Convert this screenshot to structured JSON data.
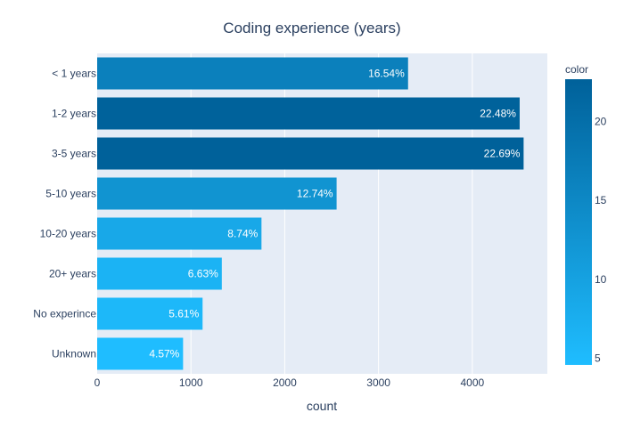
{
  "chart_data": {
    "type": "bar",
    "orientation": "horizontal",
    "title": "Coding experience (years)",
    "xlabel": "count",
    "ylabel": "",
    "xlim": [
      0,
      4800
    ],
    "xticks": [
      0,
      1000,
      2000,
      3000,
      4000
    ],
    "grid": true,
    "categories": [
      "< 1 years",
      "1-2 years",
      "3-5 years",
      "5-10 years",
      "10-20 years",
      "20+ years",
      "No experince",
      "Unknown"
    ],
    "values": [
      3315,
      4505,
      4547,
      2553,
      1752,
      1329,
      1124,
      916
    ],
    "color_values": [
      16.54,
      22.48,
      22.69,
      12.74,
      8.74,
      6.63,
      5.61,
      4.57
    ],
    "labels": [
      "16.54%",
      "22.48%",
      "22.69%",
      "12.74%",
      "8.74%",
      "6.63%",
      "5.61%",
      "4.57%"
    ],
    "colorbar": {
      "title": "color",
      "range": [
        4.57,
        22.69
      ],
      "ticks": [
        5,
        10,
        15,
        20
      ],
      "colors": [
        "#1fbdff",
        "#00619a"
      ]
    },
    "colors": {
      "plot_bg": "#e5ecf6",
      "grid": "#ffffff",
      "text": "#2a3f5f",
      "bar_label": "#ffffff"
    }
  }
}
